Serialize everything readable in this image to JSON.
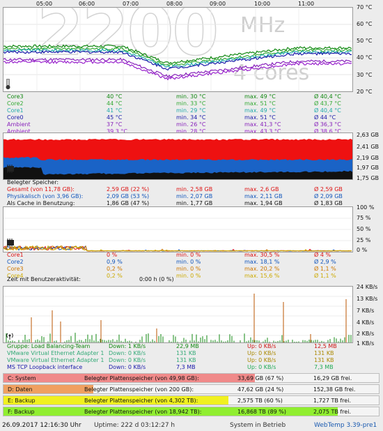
{
  "times": [
    "05:00",
    "06:00",
    "07:00",
    "08:00",
    "09:00",
    "10:00",
    "11:00"
  ],
  "temp": {
    "watermark_big": "2200",
    "watermark_unit": "MHz",
    "watermark_cores": "4 cores",
    "axis": [
      "70 °C",
      "60 °C",
      "50 °C",
      "40 °C",
      "30 °C",
      "20 °C"
    ],
    "rows": [
      {
        "name": "Core3",
        "cur": "40 °C",
        "min": "min. 30 °C",
        "max": "max. 49 °C",
        "avg": "Ø 40,4 °C",
        "color": "#118811"
      },
      {
        "name": "Core2",
        "cur": "44 °C",
        "min": "min. 33 °C",
        "max": "max. 51 °C",
        "avg": "Ø 43,7 °C",
        "color": "#33aa33"
      },
      {
        "name": "Core1",
        "cur": "41 °C",
        "min": "min. 29 °C",
        "max": "max. 49 °C",
        "avg": "Ø 40,4 °C",
        "color": "#22aaaa"
      },
      {
        "name": "Core0",
        "cur": "45 °C",
        "min": "min. 34 °C",
        "max": "max. 51 °C",
        "avg": "Ø 44 °C",
        "color": "#1a1aaa"
      },
      {
        "name": "Ambient",
        "cur": "37 °C",
        "min": "min. 26 °C",
        "max": "max. 41,3 °C",
        "avg": "Ø 36,3 °C",
        "color": "#8822bb"
      },
      {
        "name": "Ambient",
        "cur": "39,3 °C",
        "min": "min. 28 °C",
        "max": "max. 43,3 °C",
        "avg": "Ø 38,6 °C",
        "color": "#9922cc"
      }
    ]
  },
  "memory": {
    "axis": [
      "2,63 GB",
      "2,41 GB",
      "2,19 GB",
      "1,97 GB",
      "1,75 GB"
    ],
    "header": "Belegter Speicher:",
    "rows": [
      {
        "name": "Gesamt (von 11,78 GB):",
        "cur": "2,59 GB (22 %)",
        "min": "min. 2,58 GB",
        "max": "max. 2,6 GB",
        "avg": "Ø 2,59 GB",
        "color": "#dd1111"
      },
      {
        "name": "Physikalisch (von 3,96 GB):",
        "cur": "2,09 GB (53 %)",
        "min": "min. 2,07 GB",
        "max": "max. 2,11 GB",
        "avg": "Ø 2,09 GB",
        "color": "#1155bb"
      },
      {
        "name": "Als Cache in Benutzung:",
        "cur": "1,86 GB (47 %)",
        "min": "min. 1,77 GB",
        "max": "max. 1,94 GB",
        "avg": "Ø 1,83 GB",
        "color": "#111111"
      }
    ]
  },
  "cpu": {
    "axis": [
      "100 %",
      "75 %",
      "50 %",
      "25 %",
      "0 %"
    ],
    "rows": [
      {
        "name": "Core1",
        "cur": "0 %",
        "min": "min. 0 %",
        "max": "max. 30,5 %",
        "avg": "Ø 4 %",
        "color": "#dd1111"
      },
      {
        "name": "Core2",
        "cur": "0,9 %",
        "min": "min. 0 %",
        "max": "max. 18,1 %",
        "avg": "Ø 2,9 %",
        "color": "#1155bb"
      },
      {
        "name": "Core3",
        "cur": "0,2 %",
        "min": "min. 0 %",
        "max": "max. 20,2 %",
        "avg": "Ø 1,1 %",
        "color": "#cc7700"
      },
      {
        "name": "Core4",
        "cur": "0,2 %",
        "min": "min. 0 %",
        "max": "max. 15,6 %",
        "avg": "Ø 1,1 %",
        "color": "#ccaa00"
      }
    ],
    "activity_label": "Zeit mit Benutzeraktivität:",
    "activity_value": "0:00 h (0 %)"
  },
  "network": {
    "axis": [
      "24 KB/s",
      "13 KB/s",
      "7 KB/s",
      "4 KB/s",
      "2 KB/s",
      "1 KB/s"
    ],
    "rows": [
      {
        "name": "Gruppe: Load Balancing-Team",
        "down": "Down: 1 KB/s",
        "dtot": "22,9 MB",
        "up": "Up: 0 KB/s",
        "utot": "12,5 MB",
        "color": "#118811",
        "ucolor": "#cc1111"
      },
      {
        "name": "VMware Virtual Ethernet Adapter 1",
        "down": "Down: 0 KB/s",
        "dtot": "131 KB",
        "up": "Up: 0 KB/s",
        "utot": "131 KB",
        "color": "#33aa77",
        "ucolor": "#aa8800"
      },
      {
        "name": "VMware Virtual Ethernet Adapter 1",
        "down": "Down: 0 KB/s",
        "dtot": "131 KB",
        "up": "Up: 0 KB/s",
        "utot": "131 KB",
        "color": "#33aa77",
        "ucolor": "#aa8800"
      },
      {
        "name": "MS TCP Loopback interface",
        "down": "Down: 0 KB/s",
        "dtot": "7,3 MB",
        "up": "Up: 0 KB/s",
        "utot": "7,3 MB",
        "color": "#1a1aaa",
        "ucolor": "#22aa55"
      }
    ]
  },
  "disks": [
    {
      "name": "C: System",
      "label": "Belegter Plattenspeicher (von 49,98 GB):",
      "used": "33,69 GB (67 %)",
      "free": "16,29 GB frei.",
      "fill": 0.67,
      "color": "#f08a8a"
    },
    {
      "name": "D: Daten",
      "label": "Belegter Plattenspeicher (von 200 GB):",
      "used": "47,62 GB (24 %)",
      "free": "152,38 GB frei.",
      "fill": 0.24,
      "color": "#f0a060"
    },
    {
      "name": "E: Backup",
      "label": "Belegter Plattenspeicher (von 4,302 TB):",
      "used": "2,575 TB (60 %)",
      "free": "1,727 TB frei.",
      "fill": 0.6,
      "color": "#f0f020"
    },
    {
      "name": "F: Backup",
      "label": "Belegter Plattenspeicher (von 18,942 TB):",
      "used": "16,868 TB (89 %)",
      "free": "2,075 TB frei.",
      "fill": 0.89,
      "color": "#90ee30"
    }
  ],
  "status": {
    "datetime": "26.09.2017 12:16:30 Uhr",
    "uptime": "Uptime: 222 d 03:12:27 h",
    "state": "System in Betrieb",
    "app": "WebTemp 3.39-pre1"
  }
}
